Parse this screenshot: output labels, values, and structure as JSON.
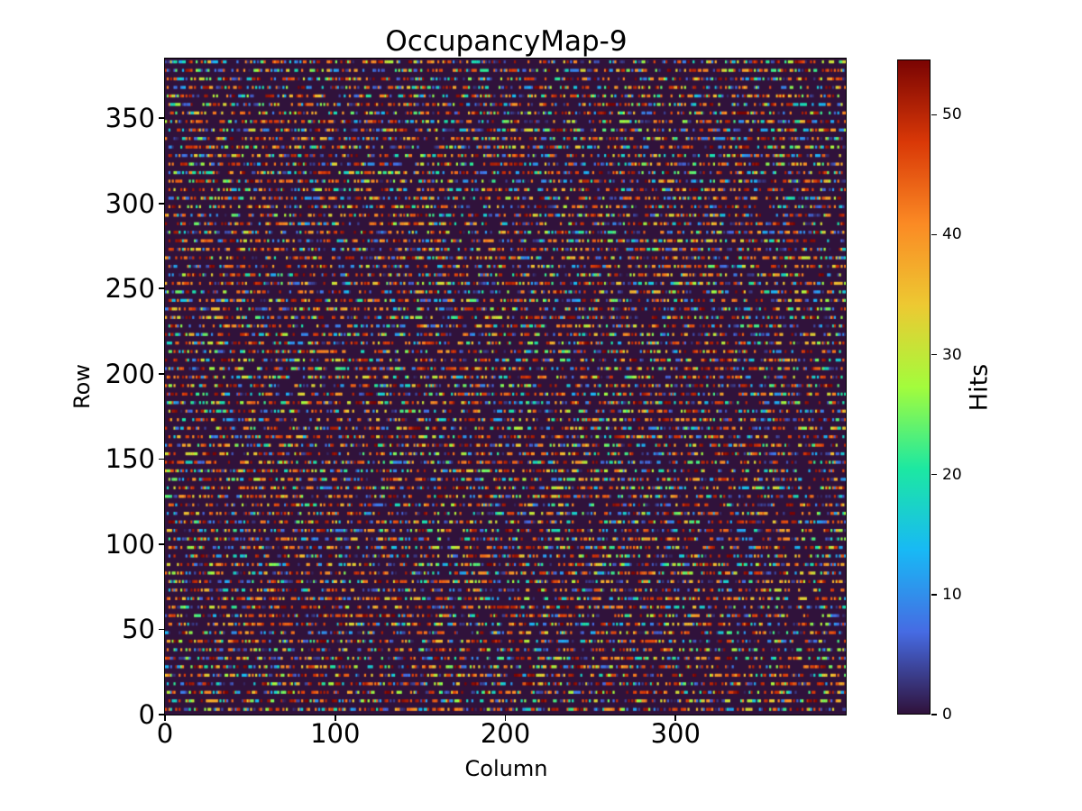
{
  "figure": {
    "title": "OccupancyMap-9"
  },
  "chart_data": {
    "type": "heatmap",
    "title": "OccupancyMap-9",
    "xlabel": "Column",
    "ylabel": "Row",
    "xlim": [
      0,
      400
    ],
    "ylim": [
      0,
      385
    ],
    "x_ticks": [
      0,
      100,
      200,
      300
    ],
    "y_ticks": [
      0,
      50,
      100,
      150,
      200,
      250,
      300,
      350
    ],
    "grid": false,
    "colorbar": {
      "label": "Hits",
      "vmin": 0,
      "vmax": 54.6,
      "ticks": [
        0,
        10,
        20,
        30,
        40,
        50
      ]
    },
    "colormap": "turbo",
    "colormap_stops": [
      {
        "t": 0.0,
        "color": "#30123b"
      },
      {
        "t": 0.125,
        "color": "#466be3"
      },
      {
        "t": 0.25,
        "color": "#18b9f5"
      },
      {
        "t": 0.375,
        "color": "#1ce8a2"
      },
      {
        "t": 0.5,
        "color": "#a3fc3c"
      },
      {
        "t": 0.625,
        "color": "#edc932"
      },
      {
        "t": 0.75,
        "color": "#fb8a24"
      },
      {
        "t": 0.875,
        "color": "#d93807"
      },
      {
        "t": 1.0,
        "color": "#7a0403"
      }
    ],
    "pattern": {
      "description": "random occupancy noise: hits clustered in horizontal stripes of colored dashes on a dark turbo-zero background",
      "columns": 400,
      "rows": 385,
      "stripe_period_rows": 5,
      "stripe_thickness_rows": 2,
      "occupied_fraction_in_stripe": 0.55,
      "seed": 9
    }
  }
}
